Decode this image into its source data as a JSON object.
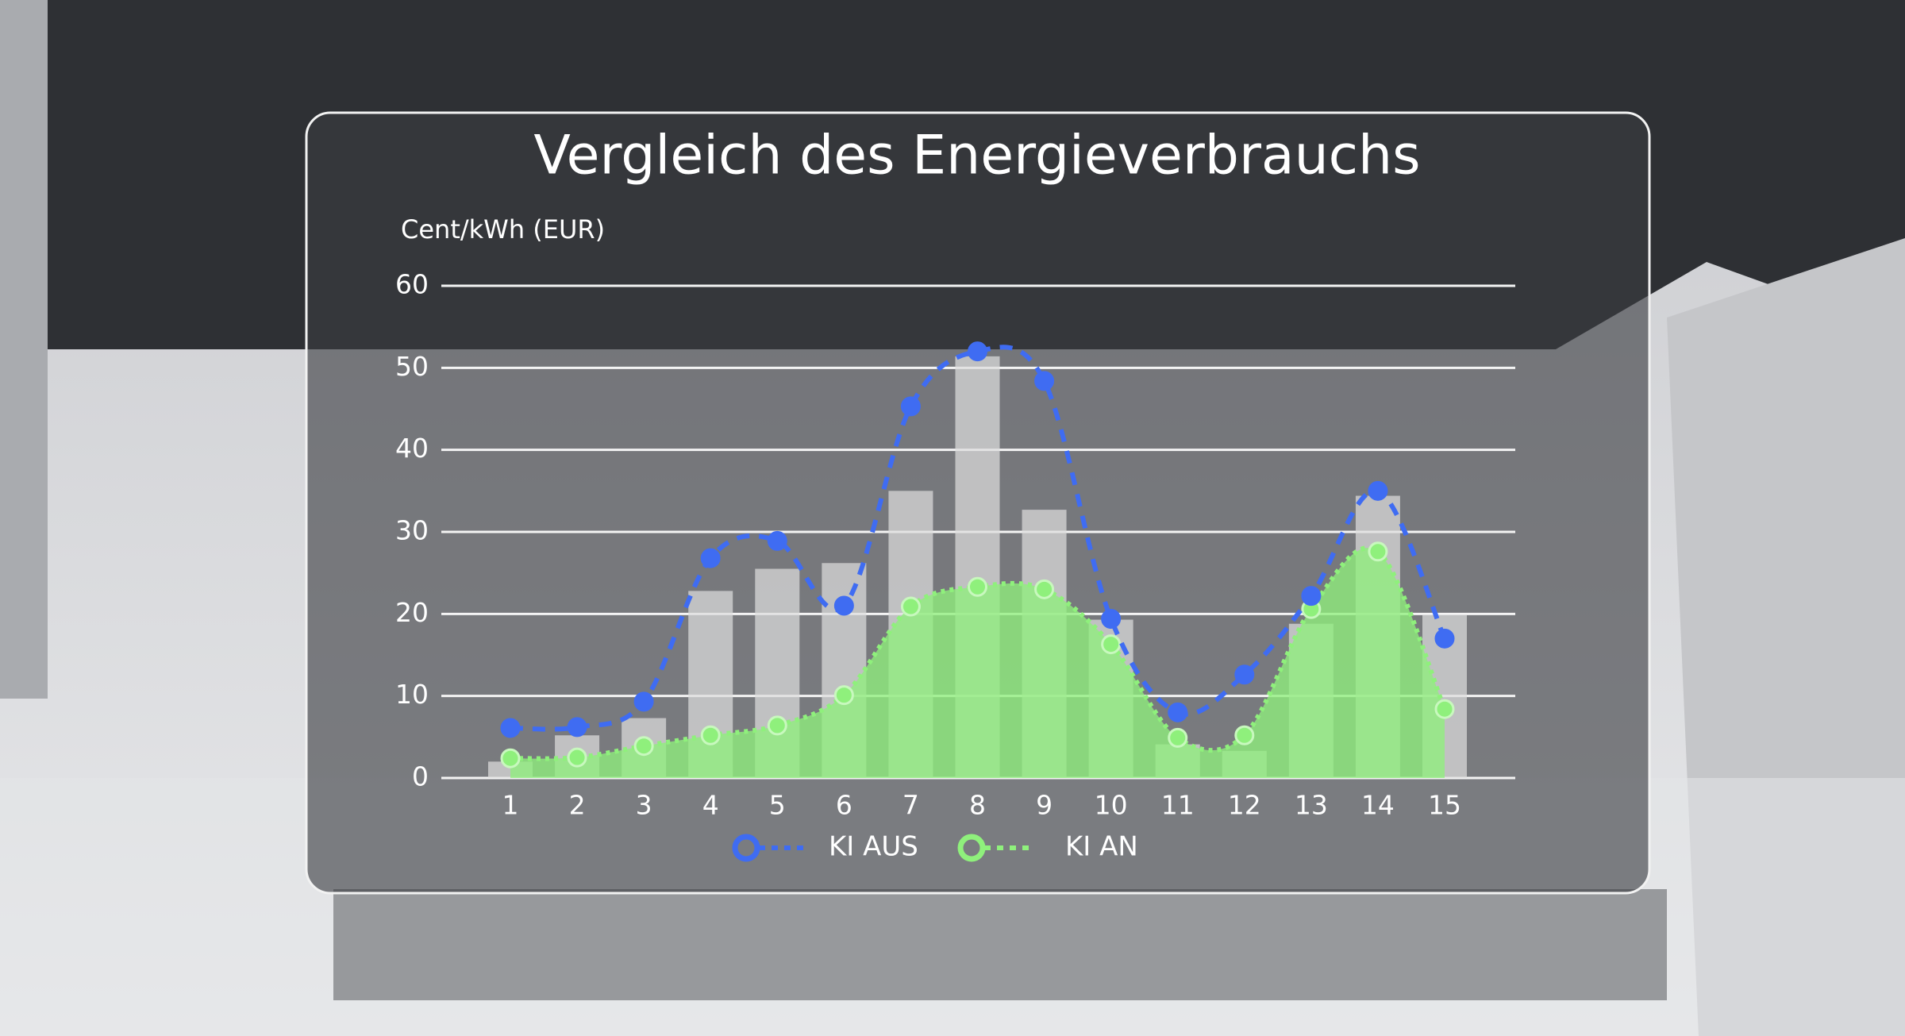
{
  "chart_data": {
    "type": "line",
    "title": "Vergleich des Energieverbrauchs",
    "y_label": "Cent/kWh (EUR)",
    "categories": [
      "1",
      "2",
      "3",
      "4",
      "5",
      "6",
      "7",
      "8",
      "9",
      "10",
      "11",
      "12",
      "13",
      "14",
      "15"
    ],
    "bars": {
      "color": "#dcdcdc",
      "values": [
        2,
        5.2,
        7.3,
        22.8,
        25.5,
        26.2,
        35,
        51.4,
        32.7,
        19.3,
        4.1,
        3.3,
        18.8,
        34.4,
        19.9
      ]
    },
    "series": [
      {
        "name": "KI AUS",
        "color": "#3f6cf2",
        "values": [
          6.1,
          6.2,
          9.3,
          26.8,
          28.9,
          21,
          45.3,
          52,
          48.4,
          19.4,
          8,
          12.6,
          22.2,
          35,
          17
        ]
      },
      {
        "name": "KI AN",
        "color": "#8ff07c",
        "values": [
          2.4,
          2.5,
          3.9,
          5.2,
          6.4,
          10.1,
          20.9,
          23.3,
          23,
          16.3,
          4.9,
          5.2,
          20.6,
          27.6,
          8.4
        ]
      }
    ],
    "ylim": [
      0,
      60
    ],
    "yticks": [
      0,
      10,
      20,
      30,
      40,
      50,
      60
    ],
    "grid": true,
    "legend": "bottom"
  }
}
